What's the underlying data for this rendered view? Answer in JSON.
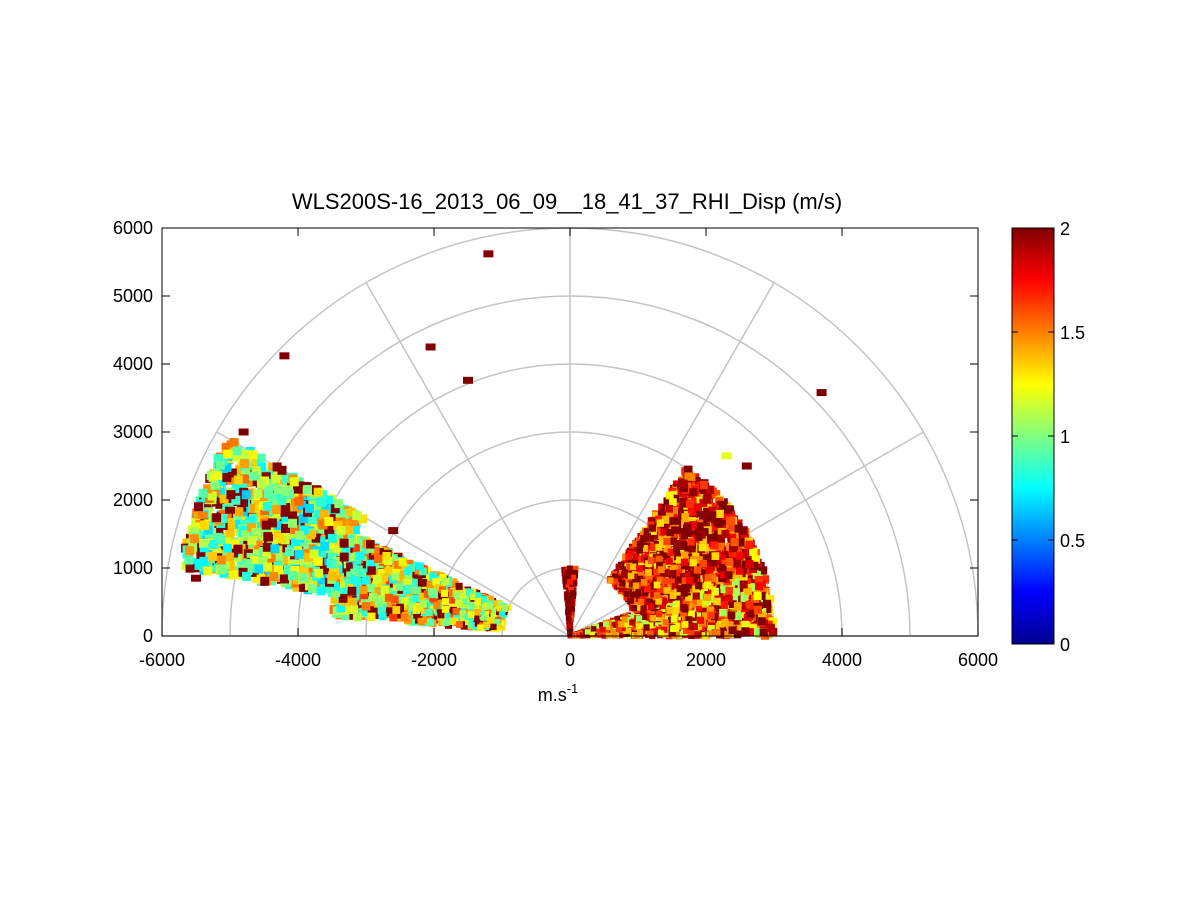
{
  "chart_data": {
    "type": "heatmap",
    "subtype": "polar RHI (range-height indicator) scan",
    "title": "WLS200S-16_2013_06_09__18_41_37_RHI_Disp (m/s)",
    "xlabel_base": "m.s",
    "xlabel_sup": "-1",
    "ylabel": "",
    "xlim": [
      -6000,
      6000
    ],
    "ylim": [
      0,
      6000
    ],
    "x_ticks": [
      "-6000",
      "-4000",
      "-2000",
      "0",
      "2000",
      "4000",
      "6000"
    ],
    "y_ticks": [
      "0",
      "1000",
      "2000",
      "3000",
      "4000",
      "5000",
      "6000"
    ],
    "polar_grid": {
      "ranges": [
        1000,
        2000,
        3000,
        4000,
        5000,
        6000
      ],
      "spokes_deg": [
        0,
        30,
        60,
        90,
        120,
        150,
        180
      ]
    },
    "colorbar": {
      "colormap": "jet",
      "min": 0,
      "max": 2,
      "ticks": [
        "0",
        "0.5",
        "1",
        "1.5",
        "2"
      ]
    },
    "series": [
      {
        "description": "low-elevation near-range returns",
        "range_m": [
          0,
          3000
        ],
        "elevation_deg": [
          0,
          20
        ],
        "typical_value": 1.5
      },
      {
        "description": "vertical beam near zenith",
        "range_m": [
          0,
          1000
        ],
        "elevation_deg": [
          85,
          95
        ],
        "typical_value": 2.0
      },
      {
        "description": "right side plume",
        "range_m": [
          1000,
          3000
        ],
        "elevation_deg": [
          20,
          55
        ],
        "typical_value": 1.7
      },
      {
        "description": "left side plume",
        "range_m": [
          1000,
          3500
        ],
        "elevation_deg": [
          155,
          175
        ],
        "typical_value": 1.2
      },
      {
        "description": "far-range isolated returns",
        "range_m": [
          3500,
          5800
        ],
        "elevation_deg": [
          150,
          170
        ],
        "typical_value": 1.1
      }
    ],
    "isolated_returns": [
      {
        "x": -1200,
        "y": 5620,
        "value": 2.0
      },
      {
        "x": -4200,
        "y": 4120,
        "value": 2.0
      },
      {
        "x": -2050,
        "y": 4250,
        "value": 2.0
      },
      {
        "x": -1500,
        "y": 3760,
        "value": 2.0
      },
      {
        "x": -4800,
        "y": 3000,
        "value": 2.0
      },
      {
        "x": 3700,
        "y": 3580,
        "value": 2.0
      },
      {
        "x": -5000,
        "y": 1850,
        "value": 2.0
      },
      {
        "x": -5400,
        "y": 1780,
        "value": 1.5
      },
      {
        "x": -5500,
        "y": 850,
        "value": 2.0
      },
      {
        "x": -2600,
        "y": 1550,
        "value": 2.0
      },
      {
        "x": 2600,
        "y": 2500,
        "value": 2.0
      },
      {
        "x": 2300,
        "y": 2650,
        "value": 1.2
      }
    ]
  }
}
